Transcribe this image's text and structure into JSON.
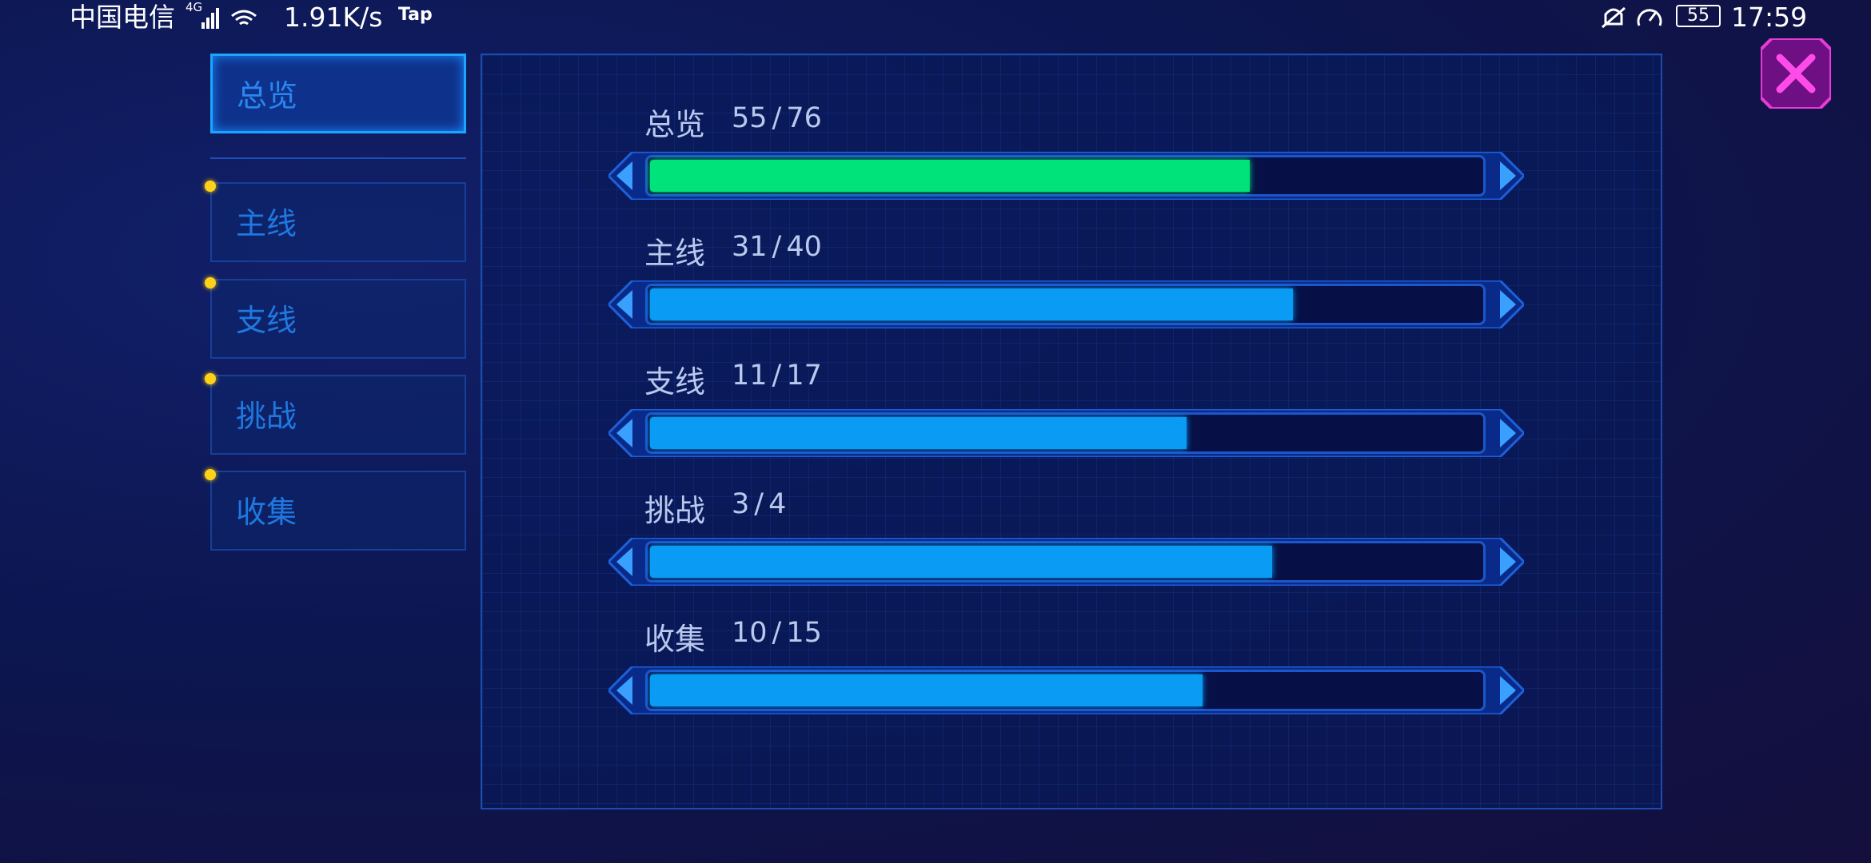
{
  "status_bar": {
    "carrier": "中国电信",
    "network": "4G",
    "speed": "1.91K/s",
    "app": "Tap",
    "battery": "55",
    "time": "17:59"
  },
  "tabs": [
    "总览",
    "主线",
    "支线",
    "挑战",
    "收集"
  ],
  "selected_tab": 0,
  "separator": "/",
  "rows": [
    {
      "label": "总览",
      "current": 55,
      "total": 76,
      "color": "#00e27a"
    },
    {
      "label": "主线",
      "current": 31,
      "total": 40,
      "color": "#0a9cf5"
    },
    {
      "label": "支线",
      "current": 11,
      "total": 17,
      "color": "#0a9cf5"
    },
    {
      "label": "挑战",
      "current": 3,
      "total": 4,
      "color": "#0a9cf5"
    },
    {
      "label": "收集",
      "current": 10,
      "total": 15,
      "color": "#0a9cf5"
    }
  ]
}
